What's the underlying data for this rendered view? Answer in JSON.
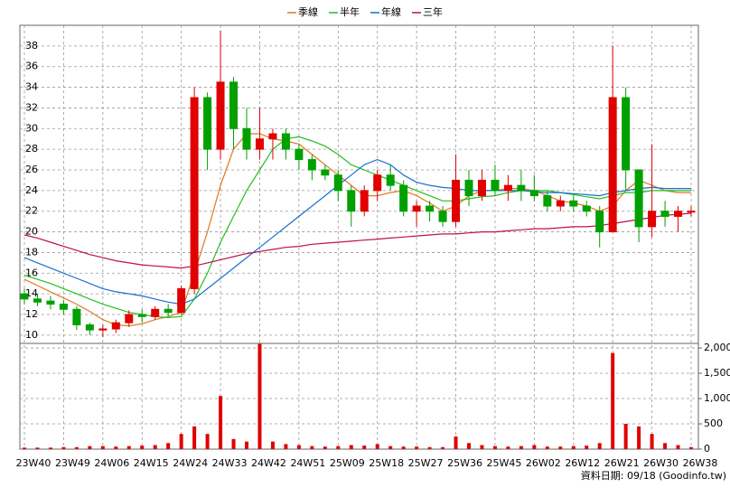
{
  "chart_data": {
    "type": "candlestick",
    "categories": [
      "23W40",
      null,
      null,
      "23W49",
      null,
      null,
      "24W06",
      null,
      null,
      "24W15",
      null,
      null,
      "24W24",
      null,
      null,
      "24W33",
      null,
      null,
      "24W42",
      null,
      null,
      "24W51",
      null,
      null,
      "25W09",
      null,
      null,
      "25W18",
      null,
      null,
      "25W27",
      null,
      null,
      "25W36",
      null,
      null,
      "25W45",
      null,
      null,
      "26W02",
      null,
      null,
      "26W12",
      null,
      null,
      "26W21",
      null,
      null,
      "26W30",
      null,
      null,
      "26W38"
    ],
    "candles": {
      "open": [
        14,
        13.5,
        13.3,
        13,
        12.5,
        11,
        10.5,
        10.6,
        11.2,
        12,
        11.8,
        12.5,
        12.2,
        14.5,
        33,
        28,
        34.5,
        30,
        28,
        29,
        29.5,
        28,
        27,
        26,
        25.5,
        24,
        22,
        24,
        25.5,
        24.5,
        22,
        22.5,
        22,
        21,
        25,
        23.5,
        25,
        24,
        24.5,
        24,
        23.5,
        22.5,
        23,
        22.5,
        22,
        20,
        33,
        26,
        20.5,
        22,
        21.5,
        22
      ],
      "high": [
        14.5,
        14,
        13.8,
        13.4,
        12.8,
        11.2,
        11,
        11.5,
        12.4,
        12.5,
        12.8,
        13,
        14.8,
        34,
        33.5,
        39.5,
        35,
        32,
        32,
        30,
        30,
        28.5,
        27.5,
        26.5,
        26,
        24.5,
        24.5,
        26,
        26.5,
        25,
        23,
        23,
        22.5,
        27.5,
        26,
        26,
        26.5,
        25.5,
        26,
        25.5,
        24,
        23.5,
        23.5,
        23,
        22.5,
        38,
        34,
        26,
        28.5,
        23,
        22.5,
        22.5
      ],
      "low": [
        13,
        12.8,
        12.5,
        12,
        10.5,
        10,
        9.8,
        10.2,
        10.8,
        11.2,
        11.5,
        11.8,
        12,
        14,
        26,
        27,
        28,
        27,
        27,
        27,
        27,
        26,
        25,
        25,
        23,
        20.5,
        21.5,
        23,
        24,
        21.5,
        20.5,
        21,
        20.5,
        20.5,
        22.5,
        23,
        23.5,
        23,
        23,
        23,
        22,
        22,
        22,
        21.5,
        18.5,
        20,
        24,
        19,
        19.5,
        20.5,
        20,
        21.5
      ],
      "close": [
        13.5,
        13.2,
        13,
        12.5,
        11,
        10.5,
        10.6,
        11.2,
        12,
        11.8,
        12.5,
        12.2,
        14.5,
        33,
        28,
        34.5,
        30,
        28,
        29,
        29.5,
        28,
        27,
        26,
        25.5,
        24,
        22,
        24,
        25.5,
        24.5,
        22,
        22.5,
        22,
        21,
        25,
        23.5,
        25,
        24,
        24.5,
        24,
        23.5,
        22.5,
        23,
        22.5,
        22,
        20,
        33,
        26,
        20.5,
        22,
        21.5,
        22,
        22
      ]
    },
    "up_color": "#e00000",
    "down_color": "#00a000",
    "series": [
      {
        "name": "季線",
        "color": "#e07820",
        "values": [
          15.4,
          14.8,
          14.2,
          13.6,
          13,
          12.3,
          11.5,
          11,
          10.9,
          11.1,
          11.5,
          11.8,
          12.2,
          16,
          20,
          24.5,
          28,
          29.5,
          29.5,
          29,
          28.8,
          28.5,
          27.5,
          26.5,
          25.5,
          24.5,
          23.5,
          23.5,
          23.8,
          24,
          23.5,
          22.8,
          22,
          22.5,
          23.5,
          24,
          24,
          24.2,
          24.2,
          24,
          23.5,
          23,
          22.8,
          22.5,
          22,
          22.5,
          24,
          25,
          24.5,
          24,
          23.8,
          23.8
        ]
      },
      {
        "name": "半年",
        "color": "#20c020",
        "values": [
          15.8,
          15.4,
          15,
          14.5,
          14,
          13.5,
          13,
          12.6,
          12.2,
          12,
          11.8,
          11.7,
          11.8,
          13.5,
          16,
          19,
          21.5,
          24,
          26,
          28,
          29,
          29.2,
          28.8,
          28.3,
          27.5,
          26.5,
          26,
          25.5,
          25,
          24.5,
          24,
          23.5,
          23,
          23,
          23.2,
          23.4,
          23.5,
          23.8,
          24,
          24,
          24,
          23.8,
          23.6,
          23.4,
          23.2,
          23.5,
          23.8,
          23.8,
          24,
          24,
          24,
          24
        ]
      },
      {
        "name": "年線",
        "color": "#1a6fd0",
        "values": [
          17.5,
          17,
          16.5,
          16,
          15.5,
          15,
          14.5,
          14.2,
          14,
          13.8,
          13.5,
          13.2,
          13,
          13.5,
          14.5,
          15.5,
          16.5,
          17.5,
          18.5,
          19.5,
          20.5,
          21.5,
          22.5,
          23.5,
          24.5,
          25.5,
          26.5,
          27,
          26.5,
          25.5,
          24.8,
          24.5,
          24.3,
          24.2,
          24,
          24,
          24,
          24,
          24,
          23.9,
          23.8,
          23.8,
          23.7,
          23.6,
          23.5,
          23.8,
          24,
          24.2,
          24.3,
          24.2,
          24.2,
          24.2
        ]
      },
      {
        "name": "三年",
        "color": "#c0104a",
        "values": [
          19.7,
          19.4,
          19,
          18.6,
          18.2,
          17.8,
          17.5,
          17.2,
          17,
          16.8,
          16.7,
          16.6,
          16.5,
          16.7,
          17,
          17.3,
          17.6,
          17.9,
          18.1,
          18.3,
          18.5,
          18.6,
          18.8,
          18.9,
          19,
          19.1,
          19.2,
          19.3,
          19.4,
          19.5,
          19.6,
          19.7,
          19.8,
          19.8,
          19.9,
          20,
          20,
          20.1,
          20.2,
          20.3,
          20.3,
          20.4,
          20.5,
          20.5,
          20.6,
          20.8,
          21,
          21.2,
          21.4,
          21.6,
          21.7,
          21.8
        ]
      }
    ],
    "ylim": [
      9.2,
      40
    ],
    "yticks": [
      10,
      12,
      14,
      16,
      18,
      20,
      22,
      24,
      26,
      28,
      30,
      32,
      34,
      36,
      38
    ],
    "volume": {
      "color": "#e00000",
      "values": [
        30,
        30,
        30,
        40,
        40,
        60,
        60,
        50,
        60,
        70,
        80,
        120,
        300,
        450,
        300,
        1050,
        200,
        150,
        2080,
        150,
        100,
        80,
        60,
        50,
        60,
        80,
        70,
        100,
        60,
        50,
        50,
        40,
        40,
        250,
        120,
        80,
        60,
        50,
        60,
        80,
        50,
        50,
        60,
        70,
        120,
        1900,
        500,
        450,
        300,
        120,
        80,
        40
      ],
      "ylim": [
        0,
        2090
      ],
      "yticks": [
        {
          "value": 2000,
          "label": "2,000"
        },
        {
          "value": 1500,
          "label": "1,500"
        },
        {
          "value": 1000,
          "label": "1,000"
        },
        500,
        0
      ]
    },
    "grid": true,
    "legend": "top",
    "source": "資料日期: 09/18 (Goodinfo.tw)"
  }
}
